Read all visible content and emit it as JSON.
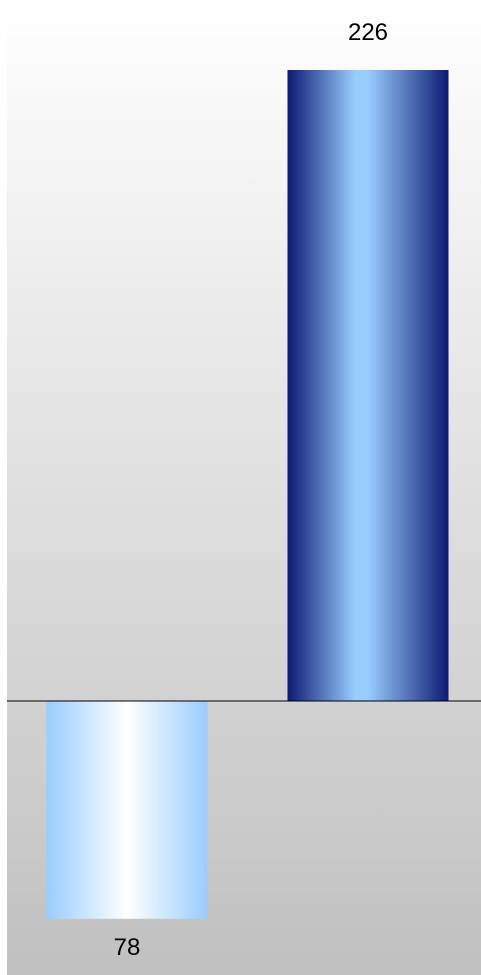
{
  "chart_data": {
    "type": "bar",
    "title": "",
    "xlabel": "",
    "ylabel": "",
    "grid": false,
    "legend": "none",
    "ylim": [
      -78,
      226
    ],
    "categories": [
      "",
      ""
    ],
    "values": [
      -78,
      226
    ],
    "data_labels": [
      "78",
      "226"
    ],
    "colors": {
      "positive_bar_edge": "#0d1a73",
      "positive_bar_center": "#99ccff",
      "negative_bar_edge": "#99ccff",
      "negative_bar_center": "#ffffff",
      "background_top": "#ffffff",
      "background_bottom": "#c0c0c0",
      "baseline": "#000000"
    }
  }
}
